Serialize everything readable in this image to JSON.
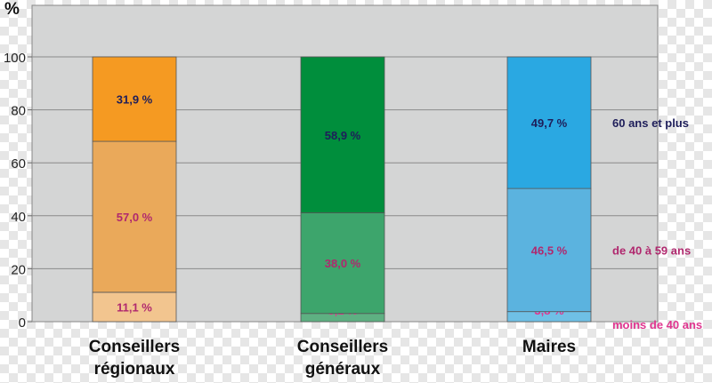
{
  "chart_data": {
    "type": "bar",
    "stacked": true,
    "unit_label": "%",
    "ylim": [
      0,
      100
    ],
    "yticks": [
      0,
      20,
      40,
      60,
      80,
      100
    ],
    "grid": true,
    "categories": [
      "Conseillers\nrégionaux",
      "Conseillers\ngénéraux",
      "Maires"
    ],
    "series": [
      {
        "name": "moins de 40 ans",
        "values": [
          11.1,
          3.1,
          3.8
        ],
        "labels": [
          "11,1 %",
          "3,1 %",
          "3,8 %"
        ],
        "label_colors": [
          "#b0286e",
          "#e0358f",
          "#e0358f"
        ],
        "colors": [
          "#f2c58f",
          "#5eb082",
          "#6fc0e6"
        ]
      },
      {
        "name": "de 40 à 59 ans",
        "values": [
          57.0,
          38.0,
          46.5
        ],
        "labels": [
          "57,0 %",
          "38,0 %",
          "46,5 %"
        ],
        "label_colors": [
          "#b0286e",
          "#b0286e",
          "#b0286e"
        ],
        "colors": [
          "#eaa95a",
          "#3da56c",
          "#5bb3df"
        ]
      },
      {
        "name": "60 ans et plus",
        "values": [
          31.9,
          58.9,
          49.7
        ],
        "labels": [
          "31,9 %",
          "58,9 %",
          "49,7 %"
        ],
        "label_colors": [
          "#1e1e5a",
          "#1e1e5a",
          "#1e1e5a"
        ],
        "colors": [
          "#f59a22",
          "#008e3c",
          "#2aa8e2"
        ]
      }
    ],
    "legend_colors": [
      "#e0358f",
      "#b0286e",
      "#1e1e5a"
    ],
    "plot_background": "#d4d5d5",
    "legend": "right"
  }
}
